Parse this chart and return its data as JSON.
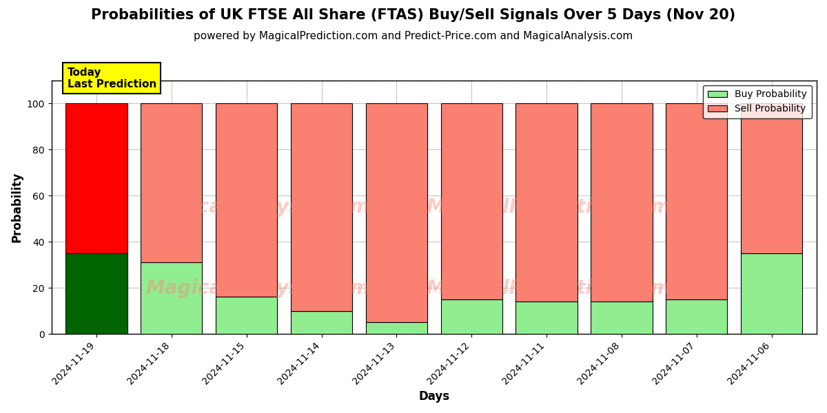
{
  "title": "Probabilities of UK FTSE All Share (FTAS) Buy/Sell Signals Over 5 Days (Nov 20)",
  "subtitle": "powered by MagicalPrediction.com and Predict-Price.com and MagicalAnalysis.com",
  "xlabel": "Days",
  "ylabel": "Probability",
  "categories": [
    "2024-11-19",
    "2024-11-18",
    "2024-11-15",
    "2024-11-14",
    "2024-11-13",
    "2024-11-12",
    "2024-11-11",
    "2024-11-08",
    "2024-11-07",
    "2024-11-06"
  ],
  "buy_values": [
    35,
    31,
    16,
    10,
    5,
    15,
    14,
    14,
    15,
    35
  ],
  "sell_values": [
    65,
    69,
    84,
    90,
    95,
    85,
    86,
    86,
    85,
    65
  ],
  "buy_colors": [
    "#006400",
    "#90EE90",
    "#90EE90",
    "#90EE90",
    "#90EE90",
    "#90EE90",
    "#90EE90",
    "#90EE90",
    "#90EE90",
    "#90EE90"
  ],
  "sell_colors": [
    "#FF0000",
    "#FA8072",
    "#FA8072",
    "#FA8072",
    "#FA8072",
    "#FA8072",
    "#FA8072",
    "#FA8072",
    "#FA8072",
    "#FA8072"
  ],
  "today_label": "Today\nLast Prediction",
  "today_index": 0,
  "ylim": [
    0,
    110
  ],
  "dashed_line_y": 110,
  "legend_buy_color": "#90EE90",
  "legend_sell_color": "#FA8072",
  "watermark_line1": "MagicalAnalysis.com",
  "watermark_line2": "MagicalPrediction.com",
  "watermark_color": "#FA8072",
  "watermark_alpha": 0.4,
  "background_color": "#ffffff",
  "title_fontsize": 15,
  "subtitle_fontsize": 11,
  "bar_edge_color": "black",
  "bar_linewidth": 0.8,
  "bar_width": 0.82
}
